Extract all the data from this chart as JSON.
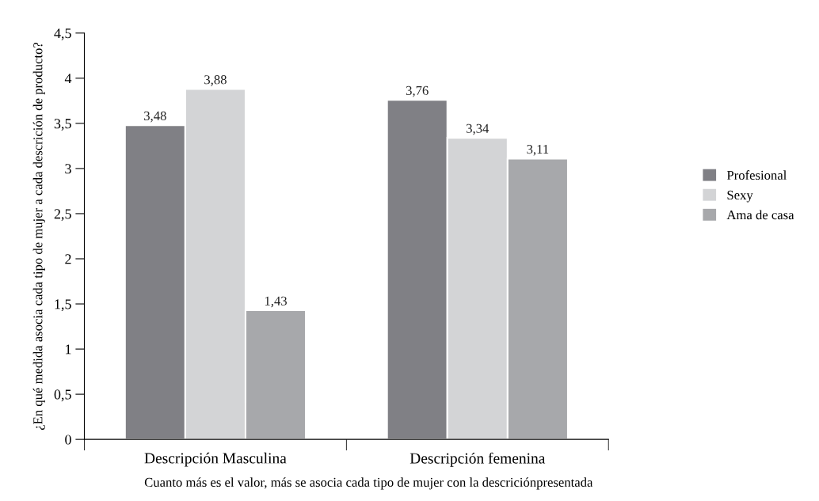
{
  "chart_data": {
    "type": "bar",
    "ylabel": "¿En qué medida asocia cada tipo de mujer a cada descrición de producto?",
    "categories": [
      "Descripción Masculina",
      "Descripción femenina"
    ],
    "series": [
      {
        "name": "Profesional",
        "color": "#808085",
        "values": [
          3.48,
          3.76
        ],
        "value_labels": [
          "3,48",
          "3,76"
        ]
      },
      {
        "name": "Sexy",
        "color": "#d3d4d6",
        "values": [
          3.88,
          3.34
        ],
        "value_labels": [
          "3,88",
          "3,34"
        ]
      },
      {
        "name": "Ama de casa",
        "color": "#a7a8ab",
        "values": [
          1.43,
          3.11
        ],
        "value_labels": [
          "1,43",
          "3,11"
        ]
      }
    ],
    "ylim": [
      0,
      4.5
    ],
    "yticks": [
      0,
      {
        "value": 0.5,
        "label": "0,5"
      },
      1,
      {
        "value": 1.5,
        "label": "1,5"
      },
      2,
      {
        "value": 2.5,
        "label": "2,5"
      },
      3,
      {
        "value": 3.5,
        "label": "3,5"
      },
      4,
      {
        "value": 4.5,
        "label": "4,5"
      }
    ],
    "grid": false,
    "legend": "right",
    "annotations": [
      "Cuanto más es el valor, más se asocia cada tipo de mujer con la descriciónpresentada"
    ]
  }
}
